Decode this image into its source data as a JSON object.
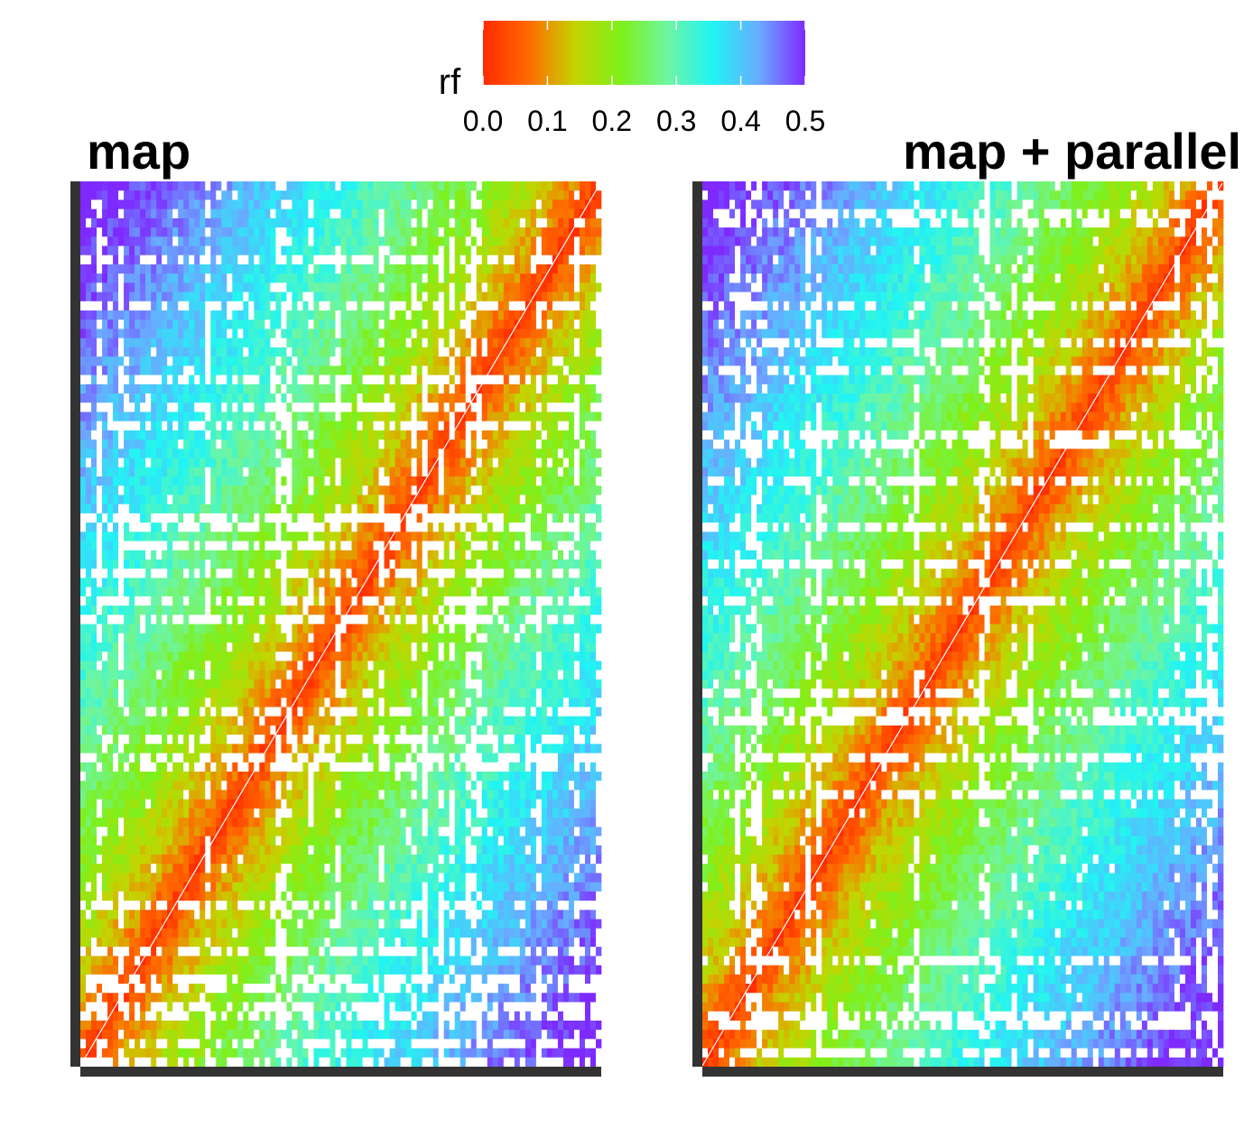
{
  "chart_data": {
    "type": "heatmap",
    "legend": {
      "title": "rf",
      "placement": "top",
      "range": [
        0.0,
        0.5
      ],
      "ticks": [
        0.0,
        0.1,
        0.2,
        0.3,
        0.4,
        0.5
      ],
      "tick_labels": [
        "0.0",
        "0.1",
        "0.2",
        "0.3",
        "0.4",
        "0.5"
      ],
      "colors": [
        "#ff2a00",
        "#ff6a00",
        "#c4d400",
        "#7ef01a",
        "#6ff5a0",
        "#20f4f4",
        "#6aaaff",
        "#7e2aff"
      ]
    },
    "panels": [
      {
        "title": "map",
        "diagonal_value": 0.0,
        "off_diagonal_peak": 0.5,
        "missing_color": "#ffffff"
      },
      {
        "title": "map + parallel",
        "diagonal_value": 0.0,
        "off_diagonal_peak": 0.5,
        "missing_color": "#ffffff"
      }
    ]
  }
}
